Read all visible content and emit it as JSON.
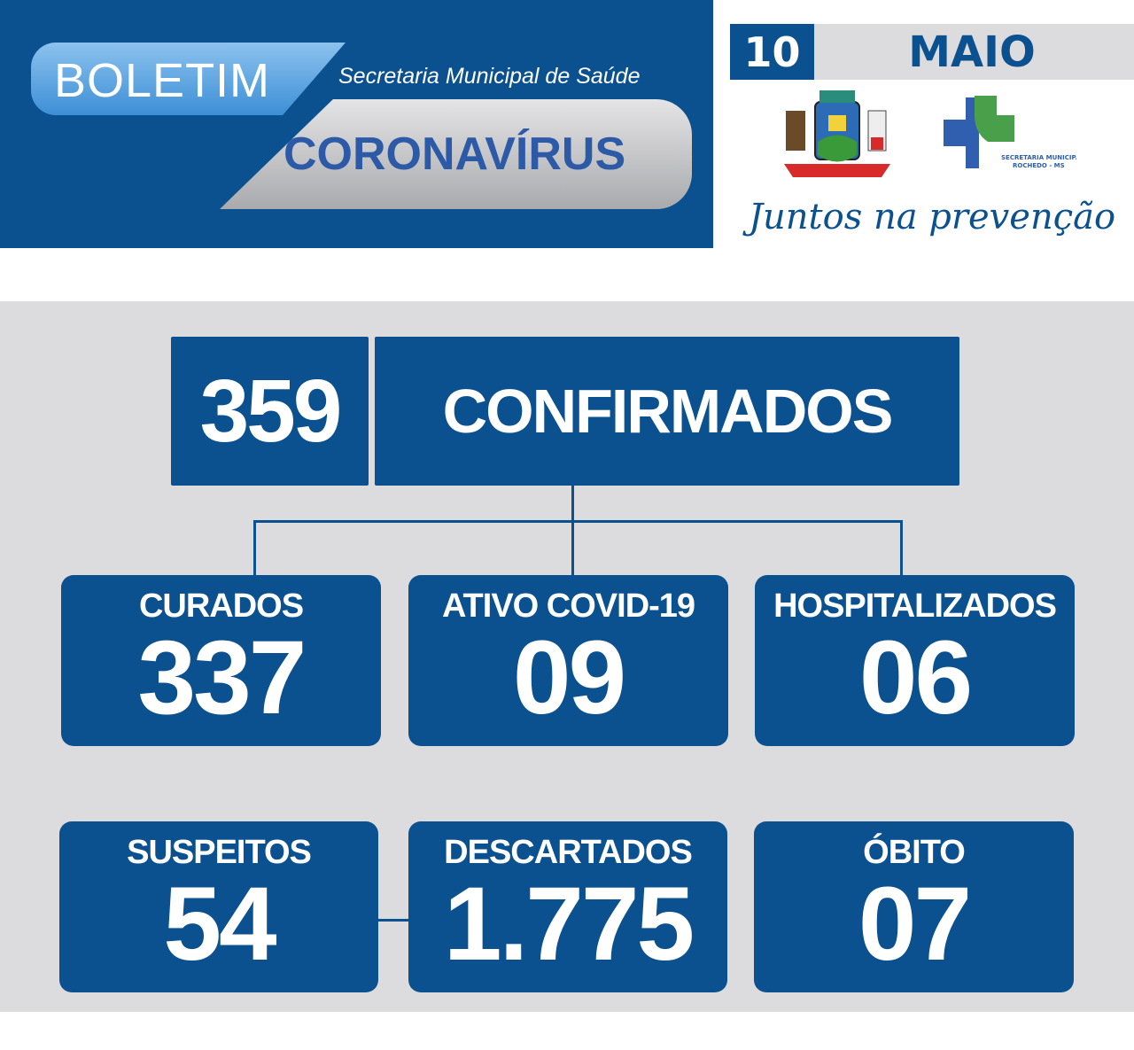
{
  "header": {
    "boletim": "BOLETIM",
    "secretaria": "Secretaria Municipal de Saúde",
    "coronavirus": "CORONAVÍRUS"
  },
  "date": {
    "day": "10",
    "month": "MAIO"
  },
  "logos": {
    "municipal_crest": "ROCHEDO",
    "health_logo": "SECRETARIA MUNICIPAL DE SAÚDE",
    "health_logo_sub": "ROCHEDO - MS"
  },
  "slogan": "Juntos na prevenção",
  "confirmed": {
    "value": "359",
    "label": "CONFIRMADOS"
  },
  "stats": [
    {
      "label": "CURADOS",
      "value": "337"
    },
    {
      "label": "ATIVO COVID-19",
      "value": "09"
    },
    {
      "label": "HOSPITALIZADOS",
      "value": "06"
    },
    {
      "label": "SUSPEITOS",
      "value": "54"
    },
    {
      "label": "DESCARTADOS",
      "value": "1.775"
    },
    {
      "label": "ÓBITO",
      "value": "07"
    }
  ],
  "colors": {
    "primary": "#0b5190",
    "background": "#dcdcde",
    "accent_light": "#5ea6e4"
  }
}
